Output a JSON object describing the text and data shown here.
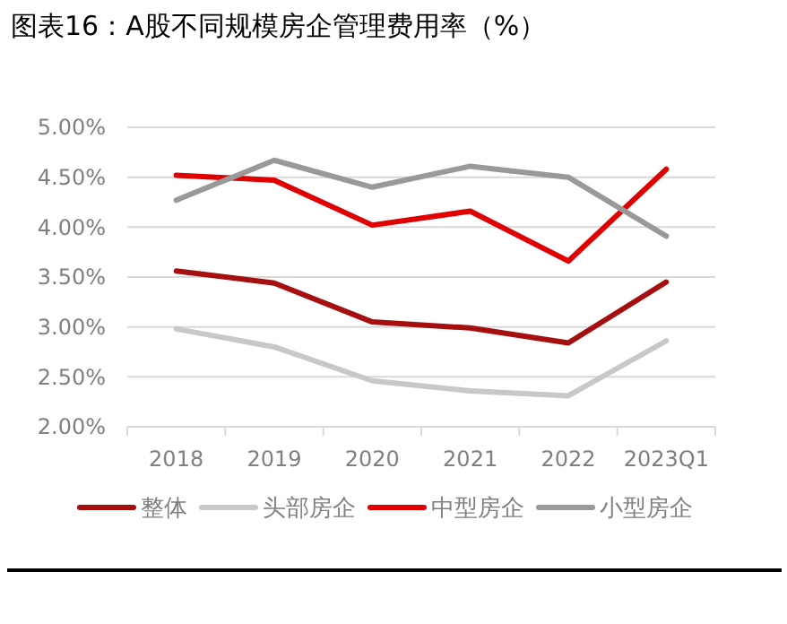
{
  "chart_data": {
    "type": "line",
    "title": "图表16：A股不同规模房企管理费用率（%）",
    "categories": [
      "2018",
      "2019",
      "2020",
      "2021",
      "2022",
      "2023Q1"
    ],
    "series": [
      {
        "name": "整体",
        "color": "#a50f0f",
        "values": [
          3.56,
          3.44,
          3.05,
          2.99,
          2.84,
          3.45
        ]
      },
      {
        "name": "头部房企",
        "color": "#c8c8c8",
        "values": [
          2.98,
          2.8,
          2.46,
          2.36,
          2.31,
          2.86
        ]
      },
      {
        "name": "中型房企",
        "color": "#e00000",
        "values": [
          4.52,
          4.47,
          4.02,
          4.16,
          3.66,
          4.58
        ]
      },
      {
        "name": "小型房企",
        "color": "#999999",
        "values": [
          4.27,
          4.67,
          4.4,
          4.61,
          4.5,
          3.91
        ]
      }
    ],
    "ylim": [
      2,
      5
    ],
    "yticks": [
      {
        "value": 2,
        "label": "2.00%"
      },
      {
        "value": 2.5,
        "label": "2.50%"
      },
      {
        "value": 3,
        "label": "3.00%"
      },
      {
        "value": 3.5,
        "label": "3.50%"
      },
      {
        "value": 4,
        "label": "4.00%"
      },
      {
        "value": 4.5,
        "label": "4.50%"
      },
      {
        "value": 5,
        "label": "5.00%"
      }
    ],
    "grid": "y",
    "legend": "bottom",
    "marker": "none",
    "line_style": "solid"
  }
}
